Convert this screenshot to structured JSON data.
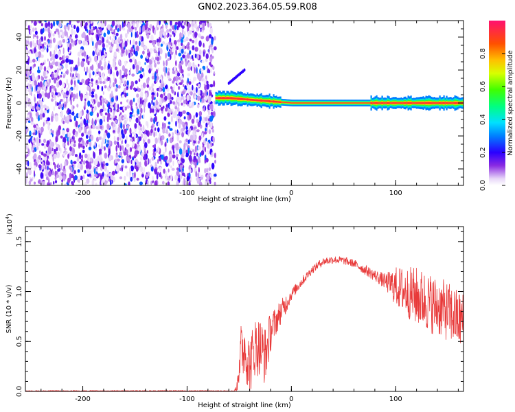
{
  "title": "GN02.2023.364.05.59.R08",
  "colors": {
    "snr_line": "#e83a3a",
    "background": "#ffffff",
    "axis": "#000000"
  },
  "chart_data": [
    {
      "type": "heatmap",
      "xlabel": "Height of straight line (km)",
      "ylabel": "Frequency (Hz)",
      "xlim": [
        -255,
        165
      ],
      "ylim": [
        -50,
        50
      ],
      "xticks": [
        -200,
        -100,
        0,
        100
      ],
      "yticks": [
        -40,
        -20,
        0,
        20,
        40
      ],
      "grid": false,
      "colorbar": {
        "label": "Normalized spectral amplitude",
        "range": [
          0,
          1
        ],
        "ticks": [
          0.0,
          0.2,
          0.4,
          0.6,
          0.8
        ],
        "colormap": "rainbow"
      },
      "regions": [
        {
          "description": "broadband noise, low amplitude",
          "x_range": [
            -255,
            -73
          ],
          "y_range": [
            -50,
            50
          ],
          "amplitude": [
            0.0,
            0.3
          ]
        },
        {
          "description": "narrow band near 0 Hz",
          "x_range": [
            -73,
            165
          ],
          "center_frequency": [
            [
              -73,
              3
            ],
            [
              -60,
              3
            ],
            [
              -40,
              2
            ],
            [
              -20,
              1
            ],
            [
              0,
              0
            ],
            [
              165,
              0
            ]
          ],
          "amplitude": 1.0
        },
        {
          "description": "short feature",
          "x_range": [
            -60,
            -45
          ],
          "frequency_range": [
            12,
            20
          ],
          "amplitude": 0.2
        }
      ]
    },
    {
      "type": "line",
      "xlabel": "Height of straight line (km)",
      "ylabel": "SNR (10 * v/v)",
      "y_multiplier_label": "(x10",
      "y_multiplier_exp": "4",
      "y_multiplier_close": ")",
      "xlim": [
        -255,
        165
      ],
      "ylim": [
        0,
        1.65
      ],
      "xticks": [
        -200,
        -100,
        0,
        100
      ],
      "yticks": [
        0.0,
        0.5,
        1.0,
        1.5
      ],
      "grid": false,
      "series": [
        {
          "x": [
            -255,
            -200,
            -150,
            -100,
            -55,
            -52,
            -50,
            -45,
            -40,
            -35,
            -30,
            -25,
            -20,
            -15,
            -10,
            -5,
            0,
            10,
            20,
            30,
            40,
            50,
            60,
            70,
            80,
            90,
            100,
            110,
            120,
            130,
            140,
            150,
            160,
            165
          ],
          "y": [
            0.0,
            0.0,
            0.0,
            0.0,
            0.0,
            0.05,
            0.35,
            0.45,
            0.25,
            0.45,
            0.45,
            0.35,
            0.6,
            0.7,
            0.8,
            0.88,
            0.97,
            1.1,
            1.22,
            1.3,
            1.32,
            1.31,
            1.28,
            1.22,
            1.16,
            1.1,
            1.05,
            1.0,
            0.95,
            0.9,
            0.85,
            0.8,
            0.72,
            0.7
          ],
          "noise": [
            0.0,
            0.0,
            0.0,
            0.0,
            0.0,
            0.05,
            0.3,
            0.3,
            0.3,
            0.3,
            0.3,
            0.3,
            0.2,
            0.15,
            0.12,
            0.1,
            0.06,
            0.05,
            0.04,
            0.04,
            0.04,
            0.04,
            0.04,
            0.05,
            0.06,
            0.08,
            0.2,
            0.25,
            0.3,
            0.3,
            0.3,
            0.3,
            0.3,
            0.3
          ]
        }
      ]
    }
  ]
}
